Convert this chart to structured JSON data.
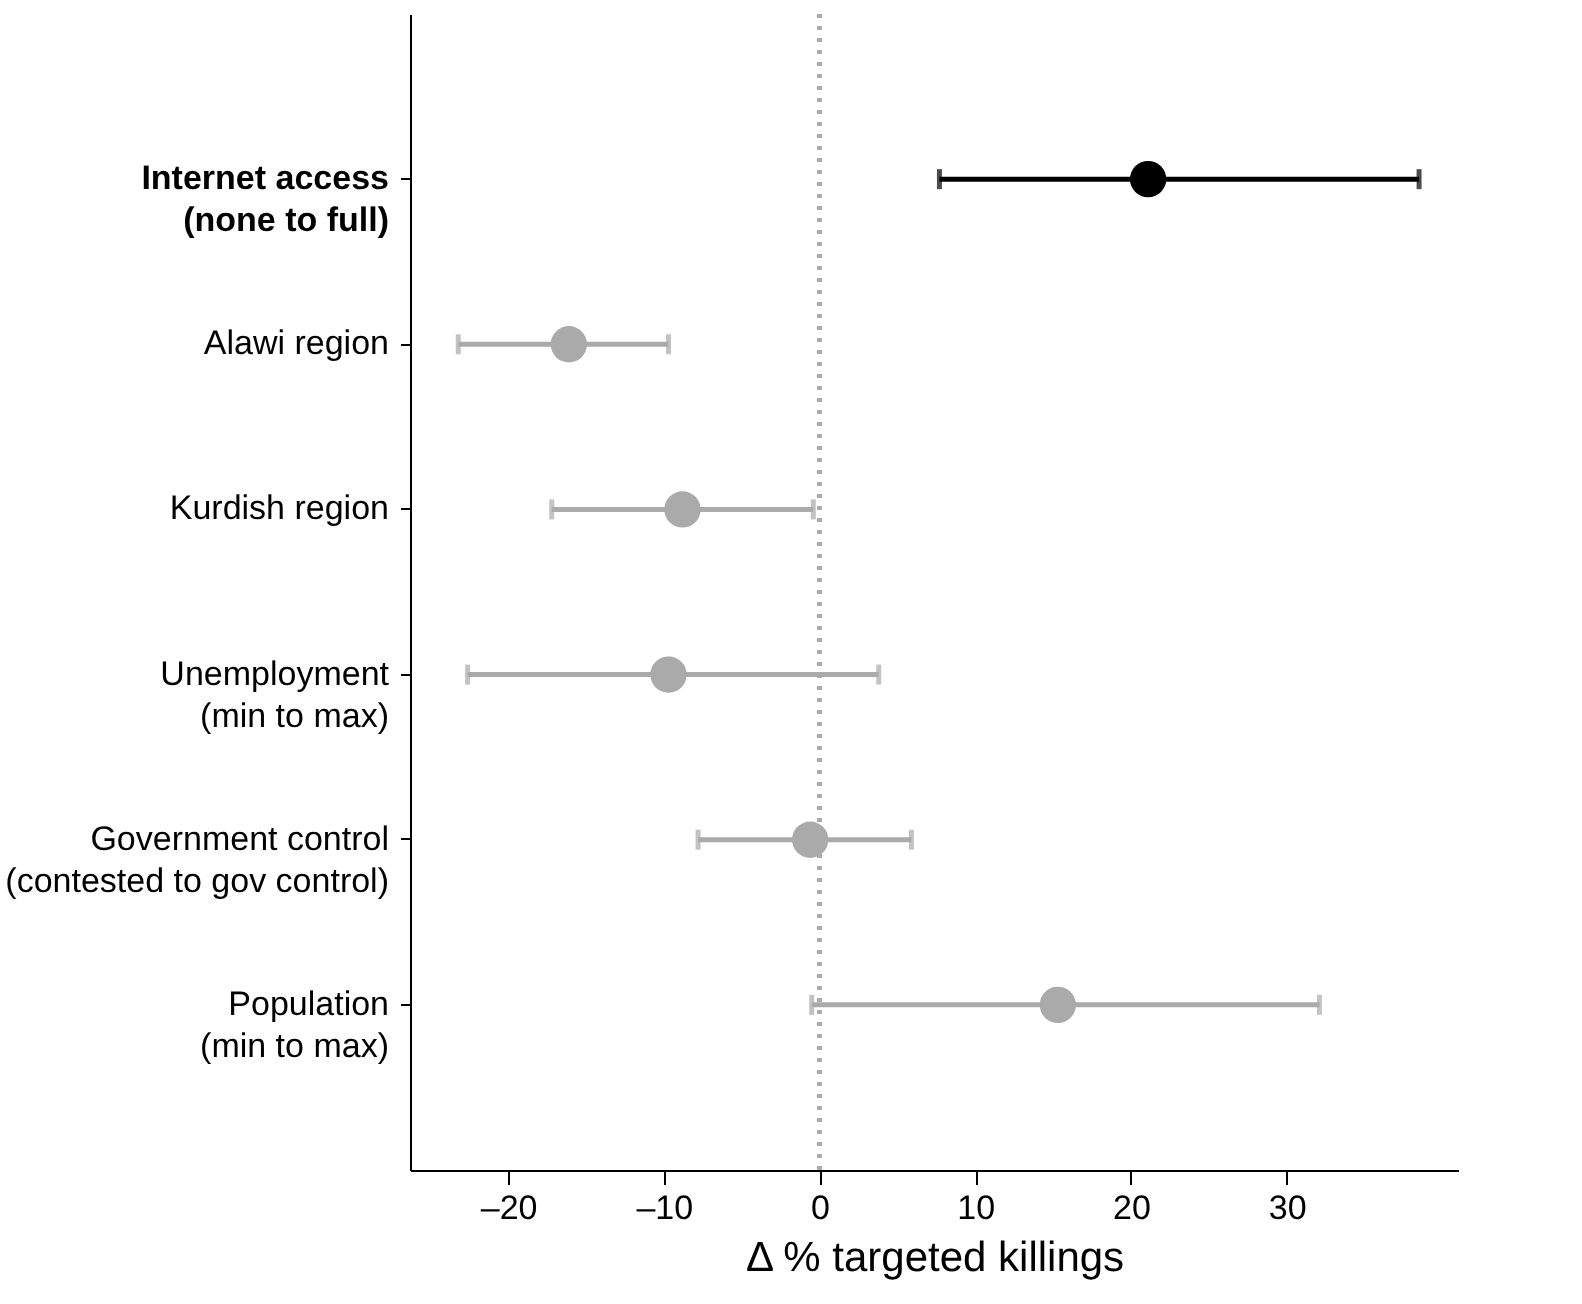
{
  "chart_data": {
    "type": "scatter",
    "orientation": "horizontal",
    "xlabel": "Δ % targeted killings",
    "categories": [
      "Internet access\n(none to full)",
      "Alawi region",
      "Kurdish region",
      "Unemployment\n(min to max)",
      "Government control\n(contested to gov control)",
      "Population\n(min to max)"
    ],
    "values": [
      21.1,
      -16.1,
      -8.8,
      -9.7,
      -0.6,
      15.3
    ],
    "errors": [
      [
        7.7,
        38.5
      ],
      [
        -23.2,
        -9.7
      ],
      [
        -17.2,
        -0.4
      ],
      [
        -22.6,
        3.8
      ],
      [
        -7.8,
        5.9
      ],
      [
        -0.5,
        32.1
      ]
    ],
    "colors": [
      "#000000",
      "#aaaaaa",
      "#aaaaaa",
      "#aaaaaa",
      "#aaaaaa",
      "#aaaaaa"
    ],
    "xlim": [
      -26.3,
      41
    ],
    "xticks": [
      {
        "value": -20,
        "label": "–20"
      },
      {
        "value": -10,
        "label": "–10"
      },
      0,
      10,
      20,
      30
    ],
    "ref_lines": [
      {
        "axis": "x",
        "value": 0,
        "color": "#aaaaaa",
        "line_style": "dotted"
      }
    ],
    "marker": "circle",
    "grid": false,
    "legend": false
  }
}
